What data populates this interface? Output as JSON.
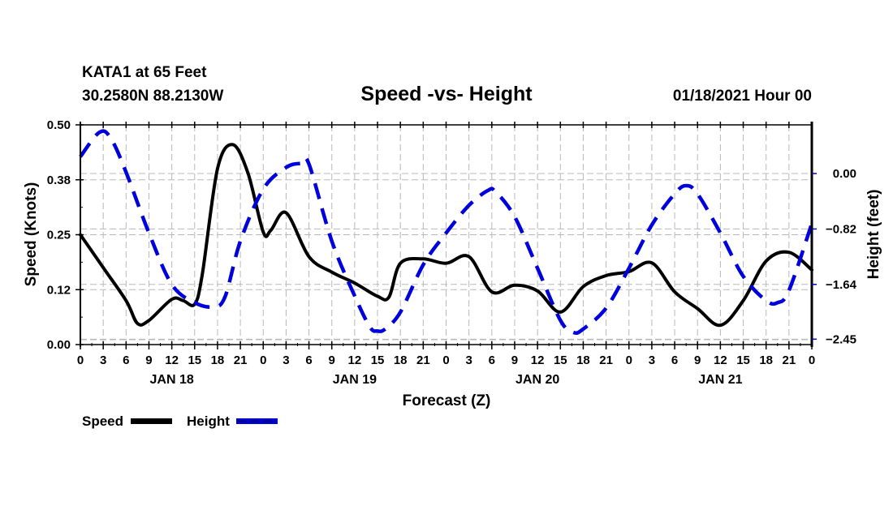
{
  "header": {
    "station": "KATA1 at 65 Feet",
    "location": "30.2580N 88.2130W",
    "title": "Speed -vs- Height",
    "datetime": "01/18/2021 Hour 00"
  },
  "chart_data": {
    "type": "line",
    "title": "Speed -vs- Height",
    "xlabel": "Forecast (Z)",
    "ylabel": "Speed (Knots)",
    "y2label": "Height (feet)",
    "xlim": [
      0,
      96
    ],
    "ylim": [
      0,
      0.5
    ],
    "y2lim": [
      -2.53,
      0.72
    ],
    "grid": true,
    "legend_position": "bottom-left",
    "x_tick_labels": [
      "0",
      "3",
      "6",
      "9",
      "12",
      "15",
      "18",
      "21",
      "0",
      "3",
      "6",
      "9",
      "12",
      "15",
      "18",
      "21",
      "0",
      "3",
      "6",
      "9",
      "12",
      "15",
      "18",
      "21",
      "0",
      "3",
      "6",
      "9",
      "12",
      "15",
      "18",
      "21",
      "0"
    ],
    "day_labels": [
      {
        "hour": 12,
        "label": "JAN 18"
      },
      {
        "hour": 36,
        "label": "JAN 19"
      },
      {
        "hour": 60,
        "label": "JAN 20"
      },
      {
        "hour": 84,
        "label": "JAN 21"
      }
    ],
    "y_ticks": [
      {
        "value": 0.0,
        "label": "0.00"
      },
      {
        "value": 0.125,
        "label": "0.12"
      },
      {
        "value": 0.25,
        "label": "0.25"
      },
      {
        "value": 0.375,
        "label": "0.38"
      },
      {
        "value": 0.5,
        "label": "0.50"
      }
    ],
    "y2_ticks": [
      {
        "value": 0.0,
        "label": "0.00"
      },
      {
        "value": -0.82,
        "label": "-0.82"
      },
      {
        "value": -1.64,
        "label": "-1.64"
      },
      {
        "value": -2.45,
        "label": "-2.45"
      }
    ],
    "series": [
      {
        "name": "Speed",
        "axis": "left",
        "color": "#000000",
        "style": "solid",
        "x": [
          0,
          3,
          6,
          7.5,
          9,
          12,
          13.5,
          15,
          16,
          18,
          20,
          22,
          24,
          25,
          27,
          30,
          33,
          36,
          39,
          40.5,
          42,
          45,
          48,
          51,
          54,
          57,
          60,
          63,
          66,
          69,
          72,
          75,
          78,
          81,
          84,
          87,
          90,
          93,
          96
        ],
        "y": [
          0.25,
          0.175,
          0.1,
          0.048,
          0.055,
          0.103,
          0.1,
          0.092,
          0.16,
          0.4,
          0.455,
          0.39,
          0.256,
          0.26,
          0.3,
          0.2,
          0.165,
          0.14,
          0.11,
          0.108,
          0.185,
          0.195,
          0.185,
          0.2,
          0.12,
          0.135,
          0.122,
          0.074,
          0.132,
          0.157,
          0.166,
          0.186,
          0.12,
          0.082,
          0.044,
          0.1,
          0.19,
          0.21,
          0.17
        ]
      },
      {
        "name": "Height",
        "axis": "right",
        "color": "#0000dd",
        "style": "dashed",
        "x": [
          0,
          2.5,
          4,
          6,
          9,
          12,
          15,
          17.5,
          19,
          21,
          24,
          27,
          29,
          30,
          33,
          36,
          38,
          39,
          40,
          42,
          45,
          48,
          51,
          53.5,
          54.5,
          57,
          60,
          63,
          64.7,
          66,
          69,
          72,
          75,
          78,
          79.5,
          81,
          84,
          87,
          90,
          91.5,
          93,
          96
        ],
        "y": [
          0.25,
          0.61,
          0.52,
          0.02,
          -0.88,
          -1.64,
          -1.91,
          -1.97,
          -1.82,
          -1.0,
          -0.23,
          0.09,
          0.15,
          0.14,
          -1.0,
          -1.81,
          -2.27,
          -2.33,
          -2.3,
          -2.05,
          -1.35,
          -0.88,
          -0.47,
          -0.25,
          -0.27,
          -0.64,
          -1.4,
          -2.17,
          -2.35,
          -2.3,
          -1.99,
          -1.4,
          -0.76,
          -0.3,
          -0.18,
          -0.3,
          -0.88,
          -1.52,
          -1.88,
          -1.91,
          -1.73,
          -0.74
        ]
      }
    ]
  },
  "legend": [
    {
      "label": "Speed"
    },
    {
      "label": "Height"
    }
  ]
}
